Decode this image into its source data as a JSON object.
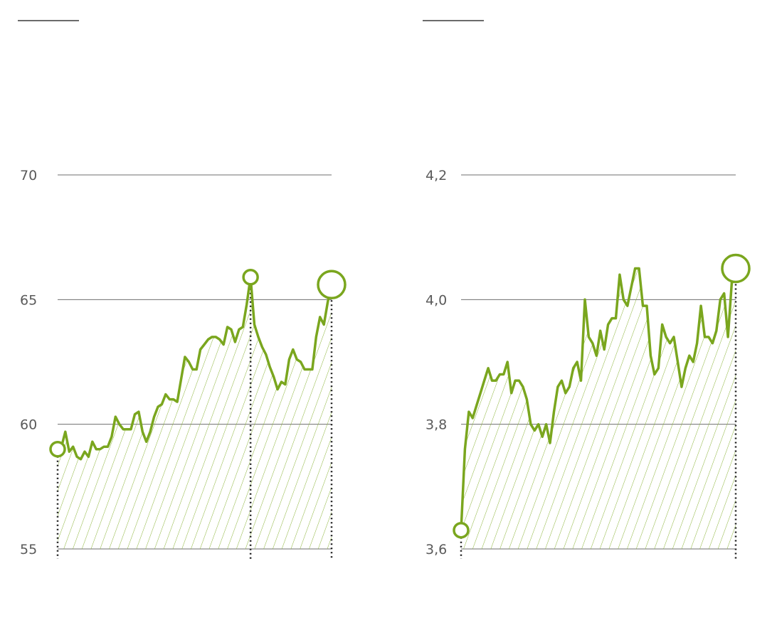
{
  "colors": {
    "line": "#7aa61e",
    "hatch": "#8cb43a",
    "grid": "#6e6e6e",
    "text": "#5a5a5a",
    "marker_line": "#1a1a1a"
  },
  "chart_data": [
    {
      "type": "line",
      "title": "",
      "xlabel": "",
      "ylabel": "",
      "ylim": [
        55,
        70
      ],
      "yticks": [
        55,
        60,
        65,
        70
      ],
      "ytick_labels": [
        "55",
        "60",
        "65",
        "70"
      ],
      "grid": true,
      "fill": "hatched",
      "series": [
        {
          "values": [
            59.0,
            59.1,
            59.7,
            58.9,
            59.1,
            58.7,
            58.6,
            58.9,
            58.7,
            59.3,
            59.0,
            59.0,
            59.1,
            59.1,
            59.5,
            60.3,
            60.0,
            59.8,
            59.8,
            59.8,
            60.4,
            60.5,
            59.7,
            59.3,
            59.7,
            60.3,
            60.7,
            60.8,
            61.2,
            61.0,
            61.0,
            60.9,
            61.8,
            62.7,
            62.5,
            62.2,
            62.2,
            63.0,
            63.2,
            63.4,
            63.5,
            63.5,
            63.4,
            63.2,
            63.9,
            63.8,
            63.3,
            63.8,
            63.9,
            64.8,
            65.9,
            64.0,
            63.5,
            63.1,
            62.8,
            62.3,
            61.9,
            61.4,
            61.7,
            61.6,
            62.6,
            63.0,
            62.6,
            62.5,
            62.2,
            62.2,
            62.2,
            63.5,
            64.3,
            64.0,
            64.9,
            65.6
          ]
        }
      ],
      "markers": [
        {
          "index": 0,
          "value": 59.0,
          "size": "small"
        },
        {
          "index": 50,
          "value": 65.9,
          "size": "small"
        },
        {
          "index": 71,
          "value": 65.6,
          "size": "large"
        }
      ],
      "dotted_verticals_at_index": [
        0,
        50,
        71
      ]
    },
    {
      "type": "line",
      "title": "",
      "xlabel": "",
      "ylabel": "",
      "ylim": [
        3.6,
        4.2
      ],
      "yticks": [
        3.6,
        3.8,
        4.0,
        4.2
      ],
      "ytick_labels": [
        "3,6",
        "3,8",
        "4,0",
        "4,2"
      ],
      "grid": true,
      "fill": "hatched",
      "series": [
        {
          "values": [
            3.63,
            3.76,
            3.82,
            3.81,
            3.83,
            3.85,
            3.87,
            3.89,
            3.87,
            3.87,
            3.88,
            3.88,
            3.9,
            3.85,
            3.87,
            3.87,
            3.86,
            3.84,
            3.8,
            3.79,
            3.8,
            3.78,
            3.8,
            3.77,
            3.82,
            3.86,
            3.87,
            3.85,
            3.86,
            3.89,
            3.9,
            3.87,
            4.0,
            3.94,
            3.93,
            3.91,
            3.95,
            3.92,
            3.96,
            3.97,
            3.97,
            4.04,
            4.0,
            3.99,
            4.02,
            4.05,
            4.05,
            3.99,
            3.99,
            3.91,
            3.88,
            3.89,
            3.96,
            3.94,
            3.93,
            3.94,
            3.9,
            3.86,
            3.89,
            3.91,
            3.9,
            3.93,
            3.99,
            3.94,
            3.94,
            3.93,
            3.95,
            4.0,
            4.01,
            3.94,
            4.03,
            4.05
          ]
        }
      ],
      "markers": [
        {
          "index": 0,
          "value": 3.63,
          "size": "small"
        },
        {
          "index": 71,
          "value": 4.05,
          "size": "large"
        }
      ],
      "dotted_verticals_at_index": [
        0,
        71
      ]
    }
  ]
}
